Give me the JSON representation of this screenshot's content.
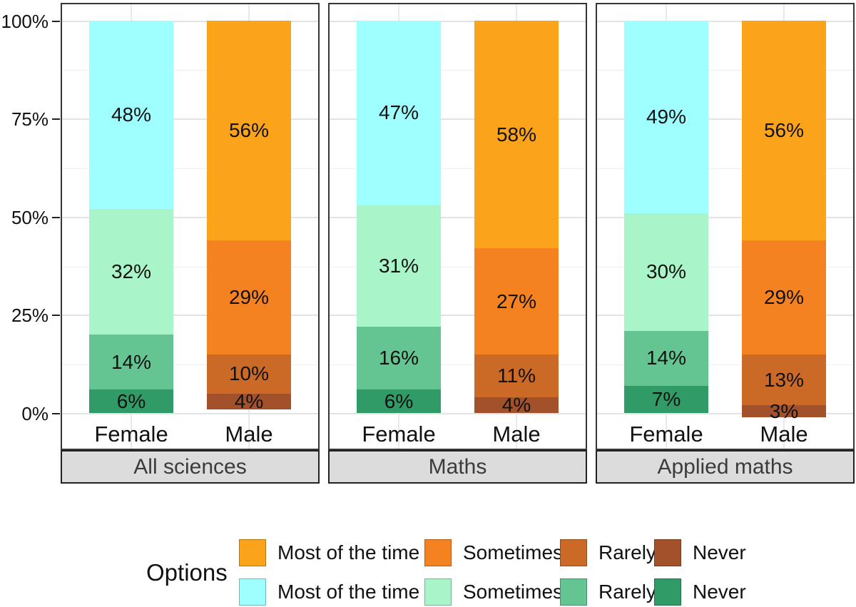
{
  "chart_data": {
    "type": "bar",
    "stacked": true,
    "orientation": "vertical",
    "unit": "%",
    "ylim": [
      0,
      100
    ],
    "grid": true,
    "y_ticks": [
      {
        "pct": 0,
        "label": "0%"
      },
      {
        "pct": 25,
        "label": "25%"
      },
      {
        "pct": 50,
        "label": "50%"
      },
      {
        "pct": 75,
        "label": "75%"
      },
      {
        "pct": 100,
        "label": "100%"
      }
    ],
    "minor_ticks_pct": [
      12.5,
      37.5,
      62.5,
      87.5
    ],
    "segment_order_top_to_bottom": [
      "most_of_the_time",
      "sometimes",
      "rarely",
      "never"
    ],
    "palettes": {
      "male": {
        "most_of_the_time": "#FAA31B",
        "sometimes": "#F58220",
        "rarely": "#CB6A27",
        "never": "#A3512B"
      },
      "female": {
        "most_of_the_time": "#9FFFFF",
        "sometimes": "#A9F5C9",
        "rarely": "#64C492",
        "never": "#309B67"
      }
    },
    "facets": [
      {
        "label": "All sciences",
        "bars": [
          {
            "category": "Female",
            "palette": "female",
            "values": {
              "most_of_the_time": 48,
              "sometimes": 32,
              "rarely": 14,
              "never": 6
            }
          },
          {
            "category": "Male",
            "palette": "male",
            "values": {
              "most_of_the_time": 56,
              "sometimes": 29,
              "rarely": 10,
              "never": 4
            }
          }
        ]
      },
      {
        "label": "Maths",
        "bars": [
          {
            "category": "Female",
            "palette": "female",
            "values": {
              "most_of_the_time": 47,
              "sometimes": 31,
              "rarely": 16,
              "never": 6
            }
          },
          {
            "category": "Male",
            "palette": "male",
            "values": {
              "most_of_the_time": 58,
              "sometimes": 27,
              "rarely": 11,
              "never": 4
            }
          }
        ]
      },
      {
        "label": "Applied maths",
        "bars": [
          {
            "category": "Female",
            "palette": "female",
            "values": {
              "most_of_the_time": 49,
              "sometimes": 30,
              "rarely": 14,
              "never": 7
            }
          },
          {
            "category": "Male",
            "palette": "male",
            "values": {
              "most_of_the_time": 56,
              "sometimes": 29,
              "rarely": 13,
              "never": 3
            }
          }
        ]
      }
    ],
    "legend": {
      "title": "Options",
      "rows": [
        {
          "palette": "male",
          "items": [
            "Most of the time",
            "Sometimes",
            "Rarely",
            "Never"
          ]
        },
        {
          "palette": "female",
          "items": [
            "Most of the time",
            "Sometimes",
            "Rarely",
            "Never"
          ]
        }
      ]
    }
  }
}
